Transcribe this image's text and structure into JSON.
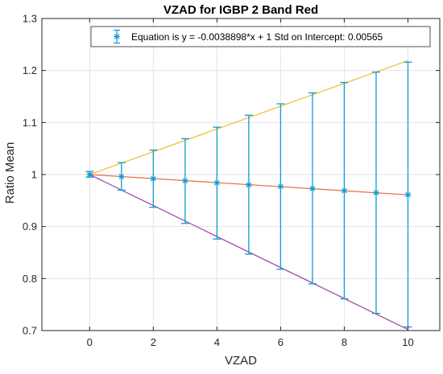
{
  "chart_data": {
    "type": "line",
    "title": "VZAD for IGBP 2 Band Red",
    "xlabel": "VZAD",
    "ylabel": "Ratio Mean",
    "xlim": [
      -1.5,
      11
    ],
    "ylim": [
      0.7,
      1.3
    ],
    "xticks": [
      0,
      2,
      4,
      6,
      8,
      10
    ],
    "yticks": [
      0.7,
      0.8,
      0.9,
      1.0,
      1.1,
      1.2,
      1.3
    ],
    "xtick_labels": [
      "0",
      "2",
      "4",
      "6",
      "8",
      "10"
    ],
    "ytick_labels": [
      "0.7",
      "0.8",
      "0.9",
      "1",
      "1.1",
      "1.2",
      "1.3"
    ],
    "grid": true,
    "legend": {
      "placement": "top-right",
      "entries": [
        "Equation is y = -0.0038898*x + 1 Std on Intercept: 0.00565"
      ]
    },
    "colors": {
      "errorbar": "#0e9bd4",
      "fit": "#e8754a",
      "upper": "#f2c23a",
      "lower": "#a54ea8",
      "grid": "#e3e3e3",
      "axis": "#262626"
    },
    "errorbar_series": {
      "x": [
        0,
        1,
        2,
        3,
        4,
        5,
        6,
        7,
        8,
        9,
        10
      ],
      "y": [
        1.0,
        0.996,
        0.992,
        0.988,
        0.984,
        0.98,
        0.977,
        0.973,
        0.969,
        0.965,
        0.961
      ],
      "lower": [
        0.995,
        0.97,
        0.937,
        0.906,
        0.876,
        0.847,
        0.818,
        0.79,
        0.761,
        0.733,
        0.707
      ],
      "upper": [
        1.006,
        1.023,
        1.047,
        1.069,
        1.091,
        1.114,
        1.136,
        1.157,
        1.177,
        1.197,
        1.216
      ]
    },
    "lines": [
      {
        "role": "fit",
        "x": [
          0,
          10
        ],
        "y": [
          1.0,
          0.961
        ]
      },
      {
        "role": "upper",
        "x": [
          0,
          10
        ],
        "y": [
          1.0,
          1.219
        ]
      },
      {
        "role": "lower",
        "x": [
          0,
          10
        ],
        "y": [
          1.0,
          0.702
        ]
      }
    ]
  }
}
